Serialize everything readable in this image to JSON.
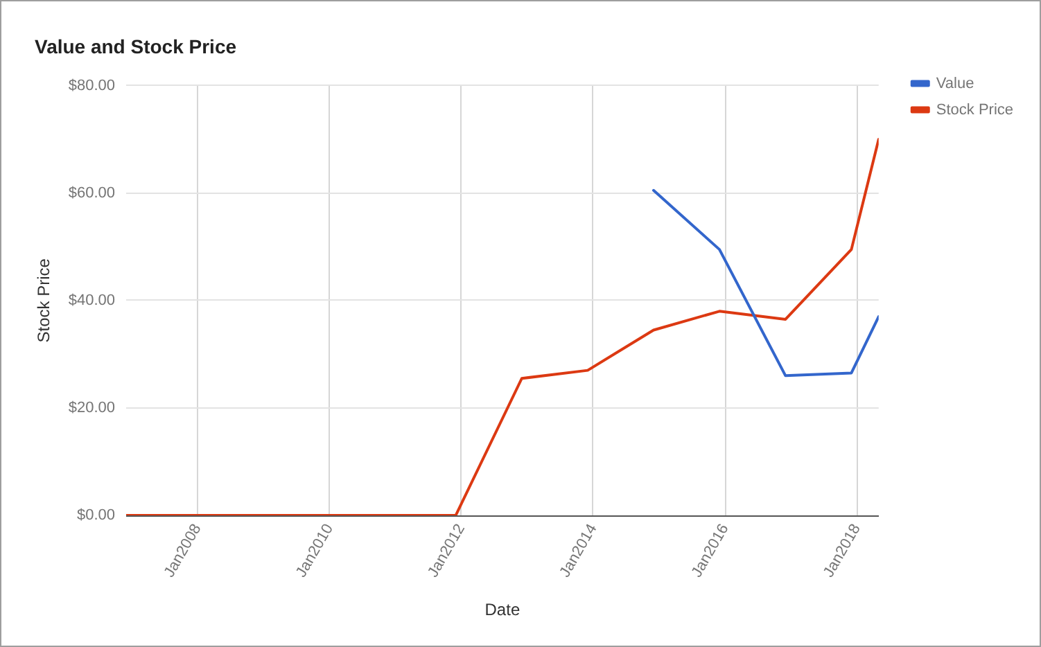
{
  "chart_data": {
    "type": "line",
    "title": "Value and Stock Price",
    "xlabel": "Date",
    "ylabel": "Stock Price",
    "series": [
      {
        "name": "Value",
        "color": "#3366cc",
        "x": [
          "2014-12",
          "2015-12",
          "2016-12",
          "2017-12",
          "2018-05"
        ],
        "values": [
          60.5,
          49.5,
          26.0,
          26.5,
          37.0
        ]
      },
      {
        "name": "Stock Price",
        "color": "#dc3912",
        "x": [
          "2006-12",
          "2007-12",
          "2008-12",
          "2009-12",
          "2010-12",
          "2011-12",
          "2012-12",
          "2013-12",
          "2014-12",
          "2015-12",
          "2016-12",
          "2017-12",
          "2018-05"
        ],
        "values": [
          0,
          0,
          0,
          0,
          0,
          0,
          25.5,
          27.0,
          34.5,
          38.0,
          36.5,
          49.5,
          70.0
        ]
      }
    ],
    "xlim": [
      "2006-12",
      "2018-05"
    ],
    "xticks": [
      {
        "value": "2008-01",
        "label": "Jan2008"
      },
      {
        "value": "2010-01",
        "label": "Jan2010"
      },
      {
        "value": "2012-01",
        "label": "Jan2012"
      },
      {
        "value": "2014-01",
        "label": "Jan2014"
      },
      {
        "value": "2016-01",
        "label": "Jan2016"
      },
      {
        "value": "2018-01",
        "label": "Jan2018"
      }
    ],
    "ylim": [
      0,
      80
    ],
    "yticks": [
      {
        "value": 0,
        "label": "$0.00"
      },
      {
        "value": 20,
        "label": "$20.00"
      },
      {
        "value": 40,
        "label": "$40.00"
      },
      {
        "value": 60,
        "label": "$60.00"
      },
      {
        "value": 80,
        "label": "$80.00"
      }
    ],
    "grid": true,
    "legend": "top right",
    "marker": "none"
  }
}
